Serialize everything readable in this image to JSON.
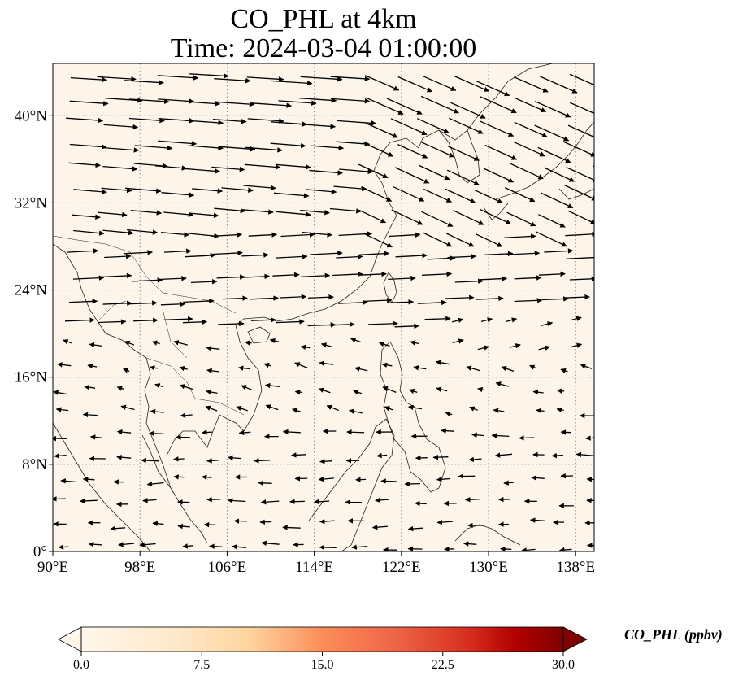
{
  "title": {
    "line1": "CO_PHL at 4km",
    "line2": "Time: 2024-03-04 01:00:00"
  },
  "map": {
    "lon_range": [
      90,
      139.7
    ],
    "lat_range": [
      0,
      44.8
    ],
    "background_color": "#fdf5ea",
    "lon_ticks": [
      {
        "value": 90,
        "label": "90°E"
      },
      {
        "value": 98,
        "label": "98°E"
      },
      {
        "value": 106,
        "label": "106°E"
      },
      {
        "value": 114,
        "label": "114°E"
      },
      {
        "value": 122,
        "label": "122°E"
      },
      {
        "value": 130,
        "label": "130°E"
      },
      {
        "value": 138,
        "label": "138°E"
      }
    ],
    "lat_ticks": [
      {
        "value": 0,
        "label": "0°"
      },
      {
        "value": 8,
        "label": "8°N"
      },
      {
        "value": 16,
        "label": "16°N"
      },
      {
        "value": 24,
        "label": "24°N"
      },
      {
        "value": 32,
        "label": "32°N"
      },
      {
        "value": 40,
        "label": "40°N"
      }
    ],
    "gridlines": "dotted"
  },
  "colorbar": {
    "label": "CO_PHL (ppbv)",
    "colormap": "OrRd",
    "range": [
      0,
      30
    ],
    "ticks": [
      "0.0",
      "7.5",
      "15.0",
      "22.5",
      "30.0"
    ],
    "extend": "both"
  }
}
